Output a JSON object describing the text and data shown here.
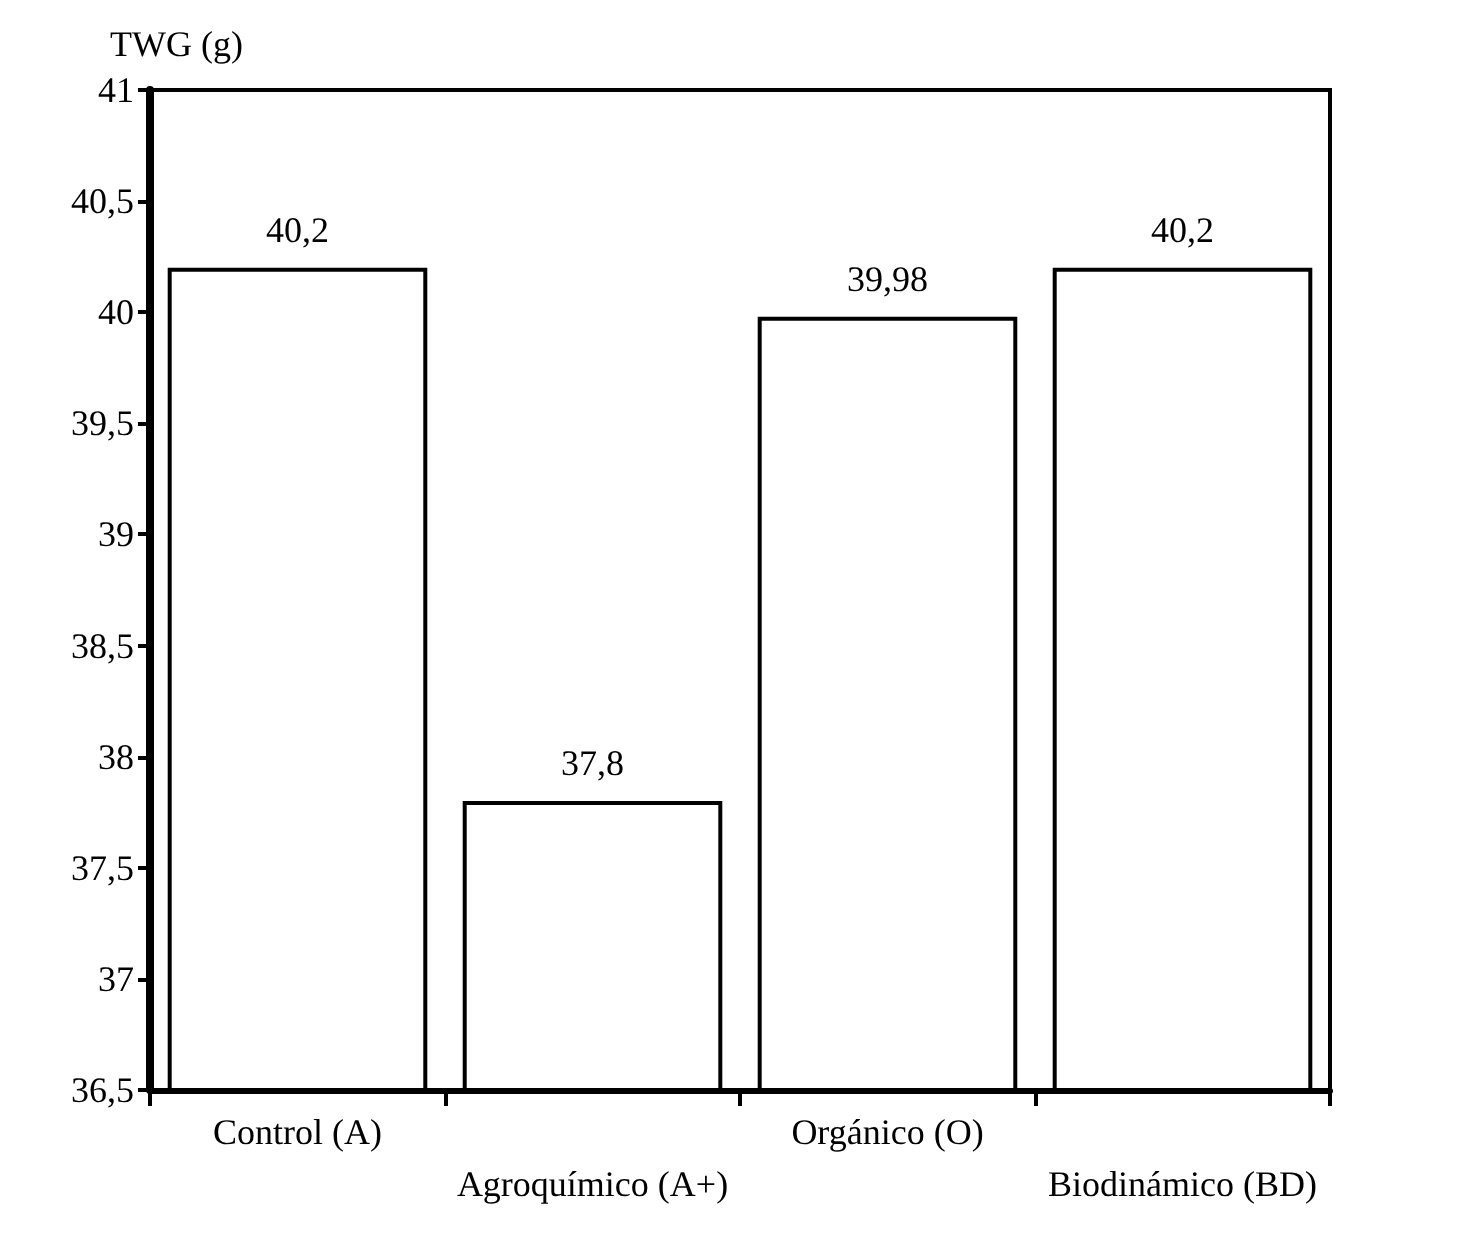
{
  "chart_data": {
    "type": "bar",
    "ylabel": "TWG (g)",
    "categories": [
      "Control (A)",
      "Agroquímico (A+)",
      "Orgánico (O)",
      "Biodinámico (BD)"
    ],
    "values": [
      40.2,
      37.8,
      39.98,
      40.2
    ],
    "value_labels": [
      "40,2",
      "37,8",
      "39,98",
      "40,2"
    ],
    "color": "#ffffff",
    "ylim": [
      36.5,
      41
    ],
    "yticks": [
      {
        "value": 36.5,
        "label": "36,5"
      },
      37,
      {
        "value": 37.5,
        "label": "37,5"
      },
      38,
      {
        "value": 38.5,
        "label": "38,5"
      },
      39,
      {
        "value": 39.5,
        "label": "39,5"
      },
      40,
      {
        "value": 40.5,
        "label": "40,5"
      },
      41
    ],
    "grid": false
  }
}
